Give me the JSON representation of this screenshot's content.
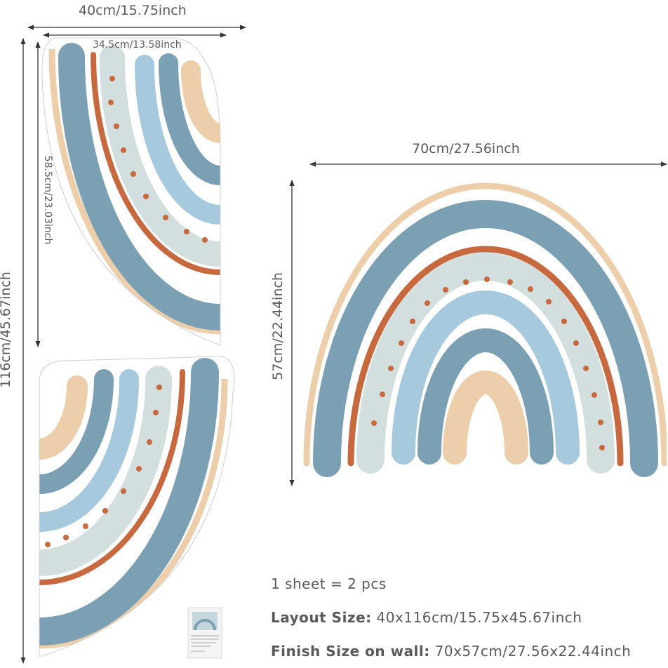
{
  "sheet": {
    "width_label": "40cm/15.75inch",
    "height_label": "116cm/45.67inch",
    "piece_width_label": "34.5cm/13.58inch",
    "piece_height_label": "58.5cm/23.03inch"
  },
  "finished": {
    "width_label": "70cm/27.56inch",
    "height_label": "57cm/22.44inch"
  },
  "info": {
    "count": "1 sheet = 2 pcs",
    "layout_key": "Layout Size:",
    "layout_value": "40x116cm/15.75x45.67inch",
    "finish_key": "Finish Size on wall:",
    "finish_value": "70x57cm/27.56x22.44inch"
  },
  "colors": {
    "blue_dark": "#7b9fb3",
    "blue_light": "#a6c9dd",
    "sage": "#d3dfde",
    "rust": "#c7693f",
    "sand": "#eccfaa",
    "dim_line": "#333333",
    "text": "#5a5a5a"
  }
}
